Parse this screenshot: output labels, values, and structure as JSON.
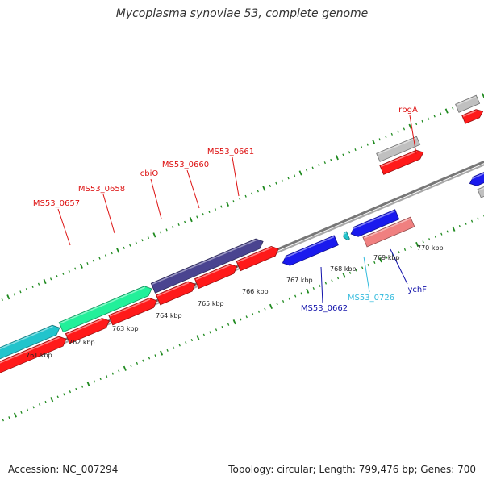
{
  "title": "Mycoplasma synoviae 53, complete genome",
  "footer": {
    "accession_label": "Accession:",
    "accession": "NC_007294",
    "topology_label": "Topology:",
    "topology": "circular",
    "length_label": "Length:",
    "length": "799,476 bp",
    "genes_label": "Genes:",
    "genes": "700"
  },
  "colors": {
    "backbone": "#8a8a8a",
    "tick": "#1f8a1f",
    "cog_red": "#ff1a1a",
    "cog_teal": "#22c4cc",
    "cog_green": "#22f09a",
    "cog_purple": "#4a4490",
    "cog_blue": "#1a1aee",
    "cog_grey": "#c0c0c0",
    "cog_pink": "#f08080",
    "label_red": "#dd1111",
    "label_blue": "#1111aa",
    "label_cyan": "#33bbdd"
  },
  "ticks": [
    "761 kbp",
    "762 kbp",
    "763 kbp",
    "764 kbp",
    "765 kbp",
    "766 kbp",
    "767 kbp",
    "768 kbp",
    "769 kbp",
    "770 kbp"
  ],
  "gene_labels": [
    {
      "text": "MS53_0657",
      "color": "label_red"
    },
    {
      "text": "MS53_0658",
      "color": "label_red"
    },
    {
      "text": "cbiO",
      "color": "label_red"
    },
    {
      "text": "MS53_0660",
      "color": "label_red"
    },
    {
      "text": "MS53_0661",
      "color": "label_red"
    },
    {
      "text": "rbgA",
      "color": "label_red"
    },
    {
      "text": "MS53_0662",
      "color": "label_blue"
    },
    {
      "text": "MS53_0726",
      "color": "label_cyan"
    },
    {
      "text": "ychF",
      "color": "label_blue"
    }
  ]
}
